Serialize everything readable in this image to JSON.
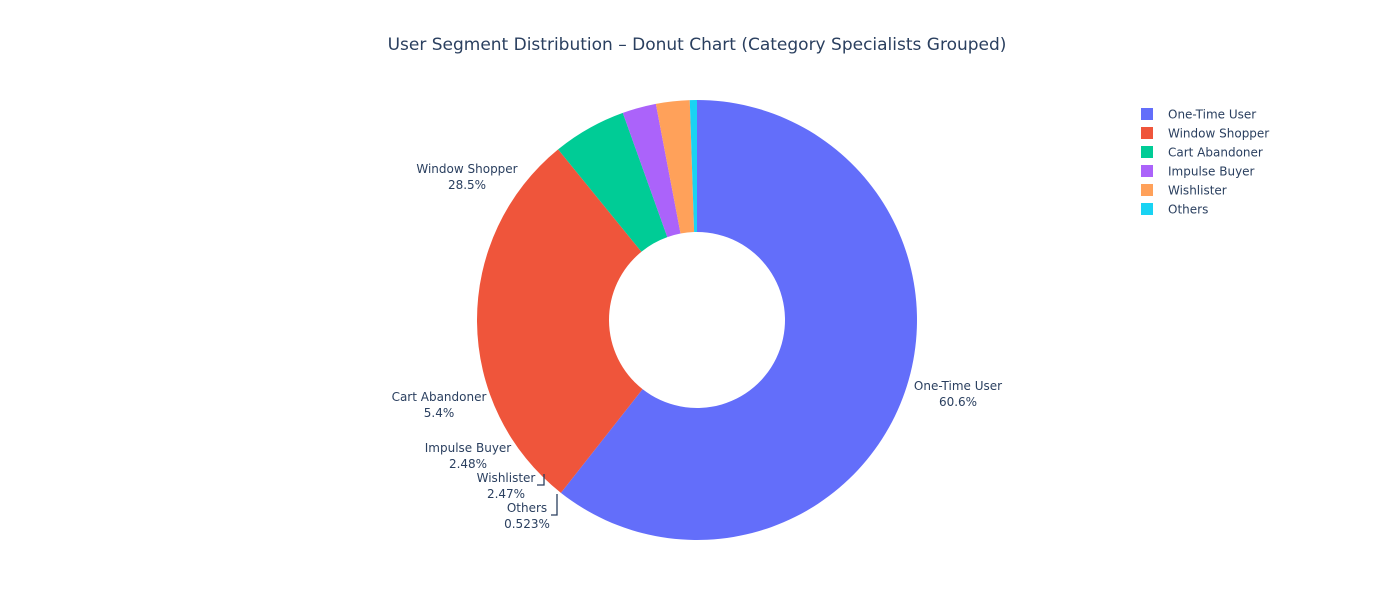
{
  "chart_data": {
    "type": "pie",
    "title": "User Segment Distribution – Donut Chart (Category Specialists Grouped)",
    "hole": 0.4,
    "legend_position": "top-right",
    "slices": [
      {
        "label": "One-Time User",
        "percent_label": "60.6%",
        "value": 60.6,
        "color": "#636efa"
      },
      {
        "label": "Window Shopper",
        "percent_label": "28.5%",
        "value": 28.5,
        "color": "#ef553b"
      },
      {
        "label": "Cart Abandoner",
        "percent_label": "5.4%",
        "value": 5.4,
        "color": "#00cc96"
      },
      {
        "label": "Impulse Buyer",
        "percent_label": "2.48%",
        "value": 2.48,
        "color": "#ab63fa"
      },
      {
        "label": "Wishlister",
        "percent_label": "2.47%",
        "value": 2.47,
        "color": "#ffa15a"
      },
      {
        "label": "Others",
        "percent_label": "0.523%",
        "value": 0.523,
        "color": "#19d3f3"
      }
    ]
  }
}
